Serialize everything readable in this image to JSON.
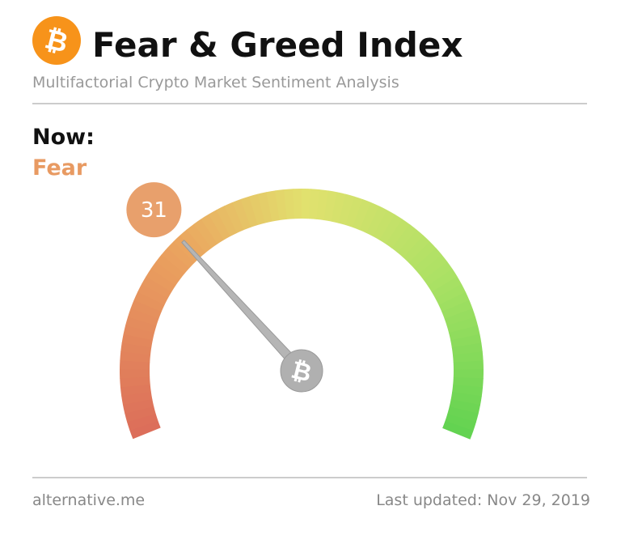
{
  "chart_data": {
    "type": "gauge",
    "title": "Fear & Greed Index",
    "subtitle": "Multifactorial Crypto Market Sentiment Analysis",
    "status_label": "Now:",
    "status": "Fear",
    "value": 31,
    "ylim": [
      0,
      100
    ]
  },
  "footer": {
    "source": "alternative.me",
    "updated": "Last updated: Nov 29, 2019"
  }
}
